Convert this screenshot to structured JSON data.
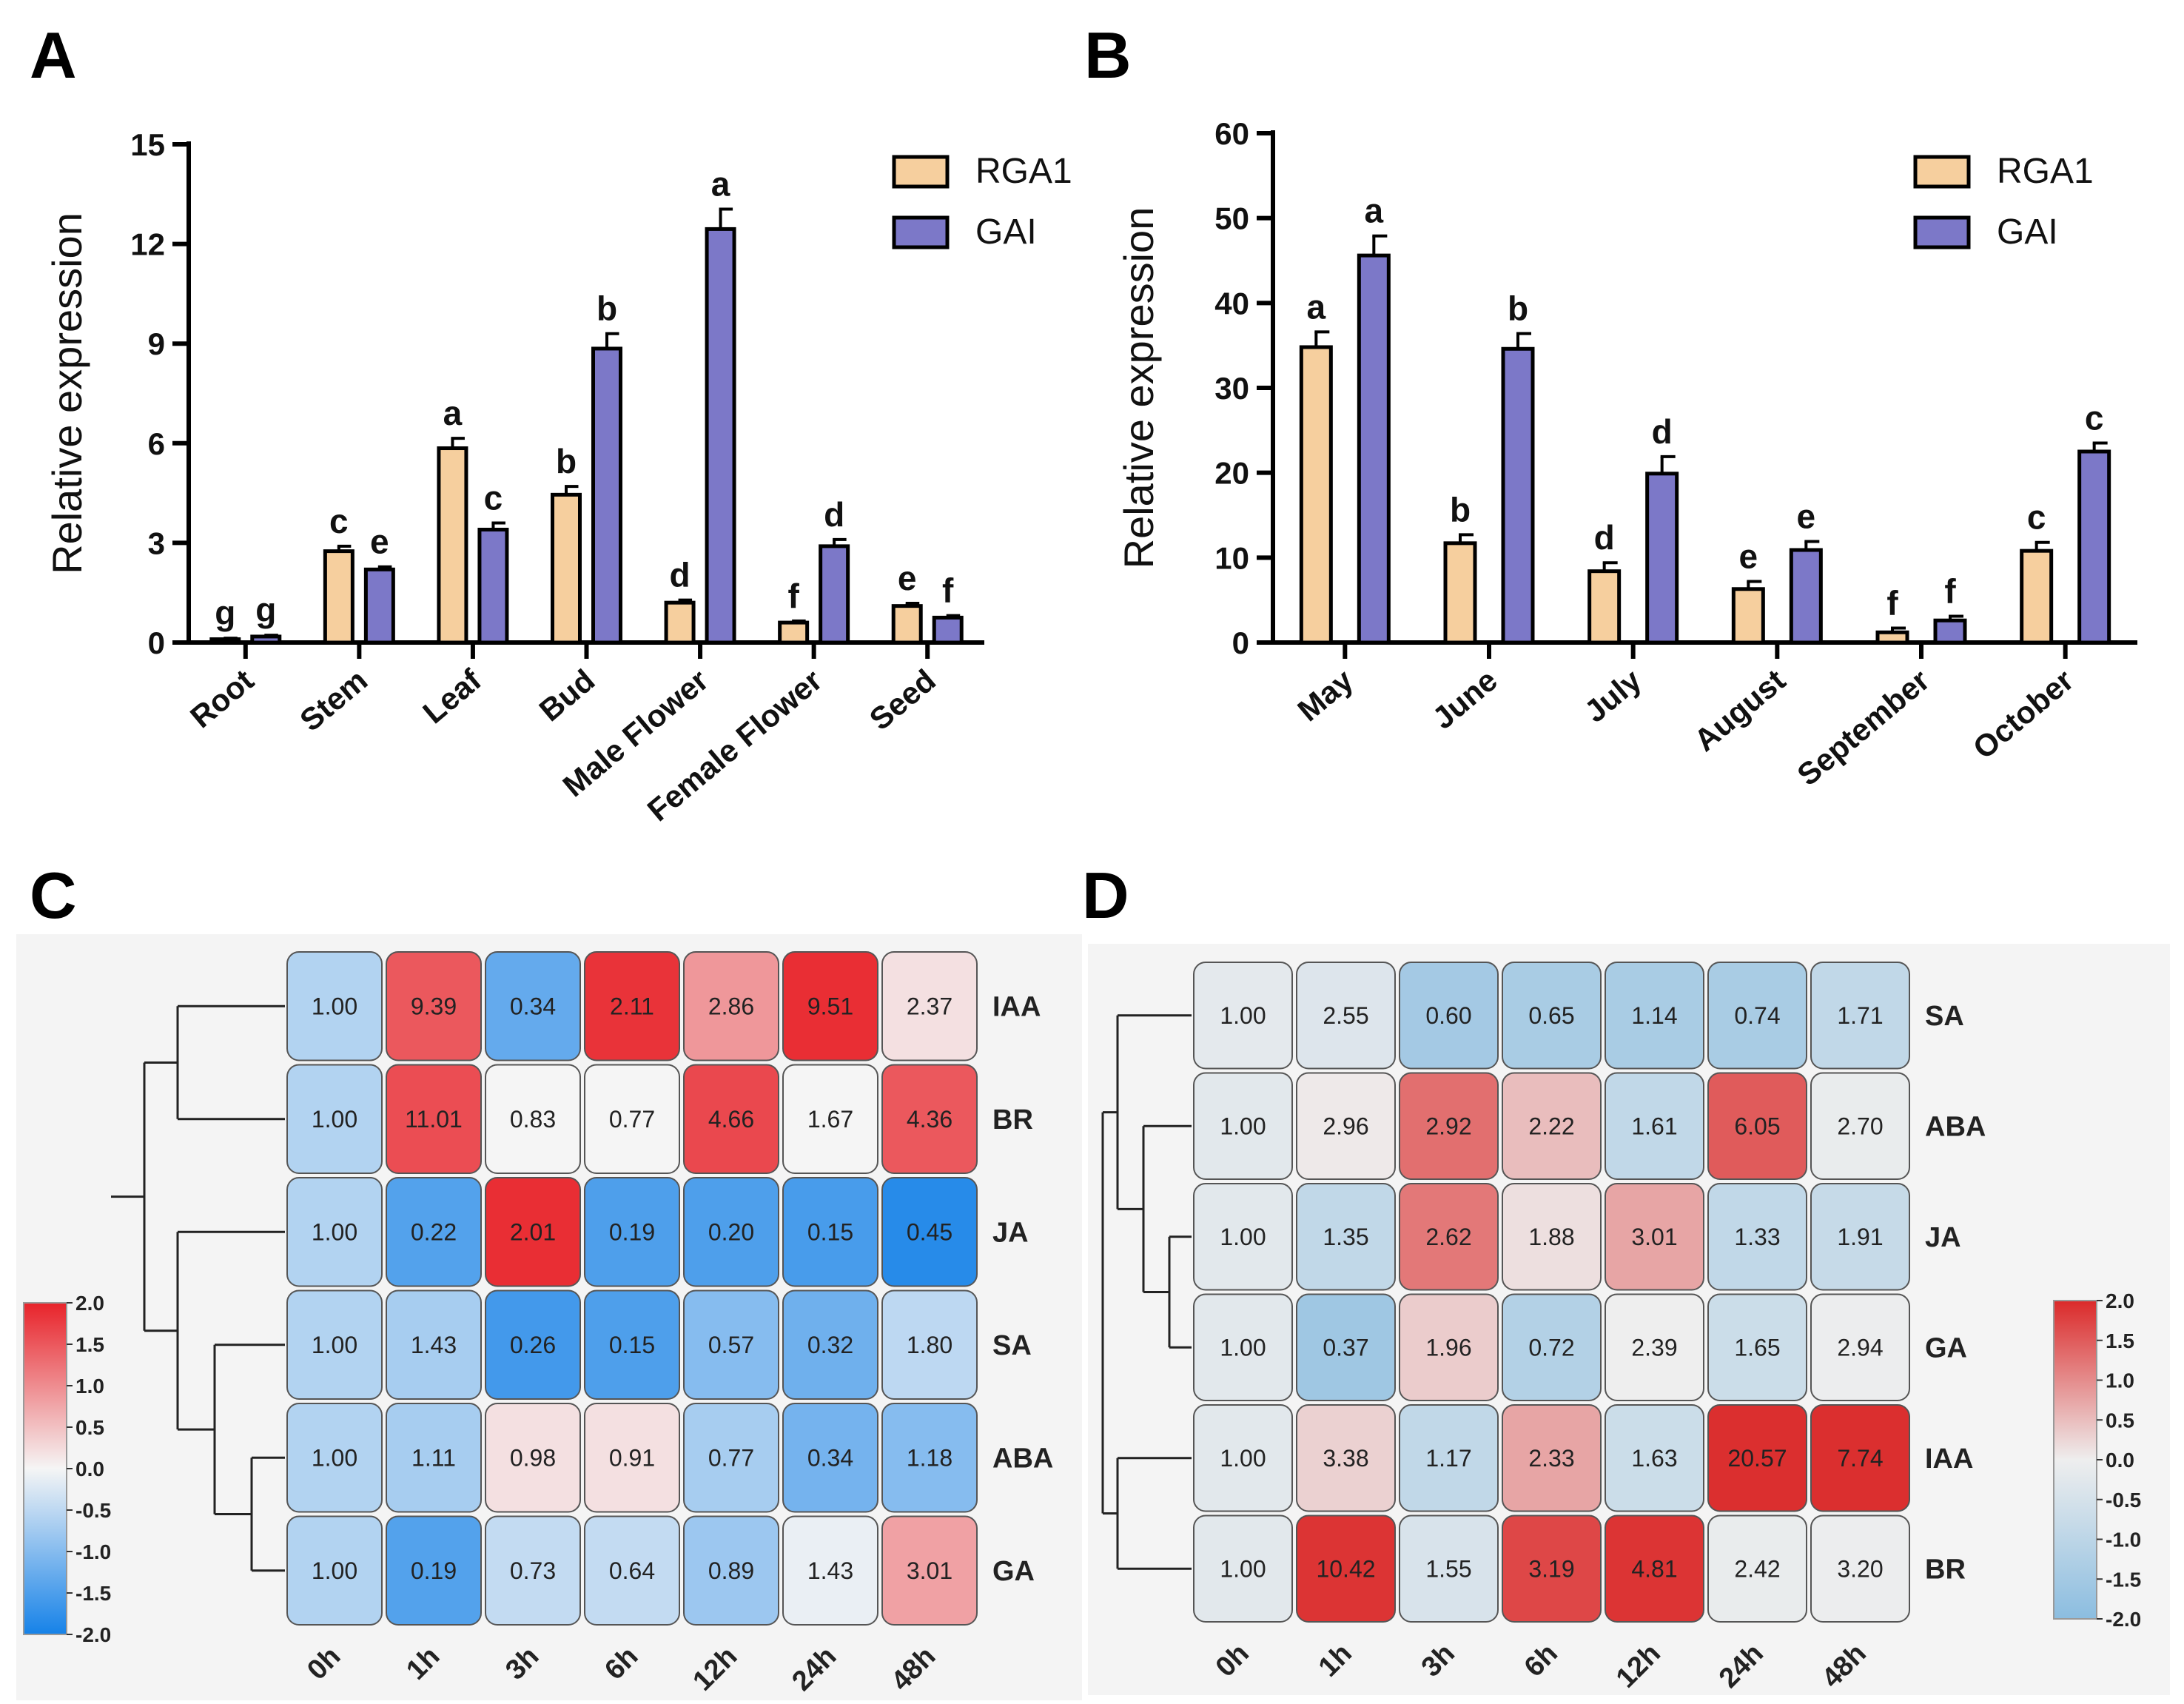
{
  "colors": {
    "rga1": "#f6cf9e",
    "gai": "#7c78c8",
    "c_red": "#e8232a",
    "c_white": "#f5f5f5",
    "c_blue": "#1682e8",
    "d_red": "#db2a2a",
    "d_white": "#eeeeee",
    "d_blue": "#8bbde0"
  },
  "chart_data": [
    {
      "panel": "A",
      "type": "bar",
      "ylabel": "Relative expression",
      "ylim": [
        0,
        15
      ],
      "yticks": [
        0,
        3,
        6,
        9,
        12,
        15
      ],
      "categories": [
        "Root",
        "Stem",
        "Leaf",
        "Bud",
        "Male Flower",
        "Female Flower",
        "Seed"
      ],
      "series": [
        {
          "name": "RGA1",
          "values": [
            0.1,
            2.75,
            5.85,
            4.45,
            1.2,
            0.6,
            1.1
          ],
          "errors": [
            0.03,
            0.15,
            0.3,
            0.25,
            0.08,
            0.05,
            0.08
          ],
          "letters": [
            "g",
            "c",
            "a",
            "b",
            "d",
            "f",
            "e"
          ]
        },
        {
          "name": "GAI",
          "values": [
            0.18,
            2.2,
            3.4,
            8.85,
            12.45,
            2.9,
            0.75
          ],
          "errors": [
            0.04,
            0.08,
            0.2,
            0.45,
            0.6,
            0.2,
            0.06
          ],
          "letters": [
            "g",
            "e",
            "c",
            "b",
            "a",
            "d",
            "f"
          ]
        }
      ],
      "legend": [
        "RGA1",
        "GAI"
      ]
    },
    {
      "panel": "B",
      "type": "bar",
      "ylabel": "Relative expression",
      "ylim": [
        0,
        60
      ],
      "yticks": [
        0,
        10,
        20,
        30,
        40,
        50,
        60
      ],
      "categories": [
        "May",
        "June",
        "July",
        "August",
        "September",
        "October"
      ],
      "series": [
        {
          "name": "RGA1",
          "values": [
            34.8,
            11.7,
            8.4,
            6.3,
            1.2,
            10.8
          ],
          "errors": [
            1.8,
            1.0,
            1.0,
            0.9,
            0.5,
            1.0
          ],
          "letters": [
            "a",
            "b",
            "d",
            "e",
            "f",
            "c"
          ]
        },
        {
          "name": "GAI",
          "values": [
            45.6,
            34.6,
            19.9,
            10.9,
            2.6,
            22.5
          ],
          "errors": [
            2.3,
            1.8,
            2.0,
            1.0,
            0.5,
            1.0
          ],
          "letters": [
            "a",
            "b",
            "d",
            "e",
            "f",
            "c"
          ]
        }
      ],
      "legend": [
        "RGA1",
        "GAI"
      ]
    },
    {
      "panel": "C",
      "type": "heatmap",
      "columns": [
        "0h",
        "1h",
        "3h",
        "6h",
        "12h",
        "24h",
        "48h"
      ],
      "rows": [
        {
          "label": "IAA",
          "values": [
            "1.00",
            "9.39",
            "0.34",
            "2.11",
            "2.86",
            "9.51",
            "2.37"
          ],
          "scale": [
            -0.6,
            1.5,
            -1.3,
            1.85,
            0.9,
            1.9,
            0.2
          ]
        },
        {
          "label": "BR",
          "values": [
            "1.00",
            "11.01",
            "0.83",
            "0.77",
            "4.66",
            "1.67",
            "4.36"
          ],
          "scale": [
            -0.6,
            1.6,
            0.0,
            0.0,
            1.65,
            0.0,
            1.5
          ]
        },
        {
          "label": "JA",
          "values": [
            "1.00",
            "0.22",
            "2.01",
            "0.19",
            "0.20",
            "0.15",
            "0.45"
          ],
          "scale": [
            -0.6,
            -1.45,
            1.9,
            -1.5,
            -1.5,
            -1.55,
            -1.85
          ]
        },
        {
          "label": "SA",
          "values": [
            "1.00",
            "1.43",
            "0.26",
            "0.15",
            "0.57",
            "0.32",
            "1.80"
          ],
          "scale": [
            -0.6,
            -0.7,
            -1.6,
            -1.5,
            -1.0,
            -1.2,
            -0.5
          ]
        },
        {
          "label": "ABA",
          "values": [
            "1.00",
            "1.11",
            "0.98",
            "0.91",
            "0.77",
            "0.34",
            "1.18"
          ],
          "scale": [
            -0.6,
            -0.7,
            0.2,
            0.2,
            -0.7,
            -1.15,
            -1.0
          ]
        },
        {
          "label": "GA",
          "values": [
            "1.00",
            "0.19",
            "0.73",
            "0.64",
            "0.89",
            "1.43",
            "3.01"
          ],
          "scale": [
            -0.6,
            -1.45,
            -0.45,
            -0.45,
            -0.8,
            -0.1,
            0.8
          ]
        }
      ],
      "colorbar": {
        "min": -2.0,
        "max": 2.0,
        "ticks": [
          "2.0",
          "1.5",
          "1.0",
          "0.5",
          "0.0",
          "-0.5",
          "-1.0",
          "-1.5",
          "-2.0"
        ]
      }
    },
    {
      "panel": "D",
      "type": "heatmap",
      "columns": [
        "0h",
        "1h",
        "3h",
        "6h",
        "12h",
        "24h",
        "48h"
      ],
      "rows": [
        {
          "label": "SA",
          "values": [
            "1.00",
            "2.55",
            "0.60",
            "0.65",
            "1.14",
            "0.74",
            "1.71"
          ],
          "scale": [
            -0.2,
            -0.35,
            -1.5,
            -1.4,
            -1.4,
            -1.4,
            -0.9
          ]
        },
        {
          "label": "ABA",
          "values": [
            "1.00",
            "2.96",
            "2.92",
            "2.22",
            "1.61",
            "6.05",
            "2.70"
          ],
          "scale": [
            -0.25,
            0.05,
            1.3,
            0.5,
            -0.9,
            1.5,
            -0.1
          ]
        },
        {
          "label": "JA",
          "values": [
            "1.00",
            "1.35",
            "2.62",
            "1.88",
            "3.01",
            "1.33",
            "1.91"
          ],
          "scale": [
            -0.25,
            -0.9,
            1.2,
            0.15,
            0.75,
            -0.9,
            -0.8
          ]
        },
        {
          "label": "GA",
          "values": [
            "1.00",
            "0.37",
            "1.96",
            "0.72",
            "2.39",
            "1.65",
            "2.94"
          ],
          "scale": [
            -0.25,
            -1.6,
            0.35,
            -1.2,
            0.0,
            -0.7,
            -0.05
          ]
        },
        {
          "label": "IAA",
          "values": [
            "1.00",
            "3.38",
            "1.17",
            "2.33",
            "1.63",
            "20.57",
            "7.74"
          ],
          "scale": [
            -0.25,
            0.3,
            -0.9,
            0.75,
            -0.7,
            1.95,
            1.95
          ]
        },
        {
          "label": "BR",
          "values": [
            "1.00",
            "10.42",
            "1.55",
            "3.19",
            "4.81",
            "2.42",
            "3.20"
          ],
          "scale": [
            -0.25,
            1.9,
            -0.45,
            1.7,
            1.9,
            -0.1,
            -0.05
          ]
        }
      ],
      "colorbar": {
        "min": -2.0,
        "max": 2.0,
        "ticks": [
          "2.0",
          "1.5",
          "1.0",
          "0.5",
          "0.0",
          "-0.5",
          "-1.0",
          "-1.5",
          "-2.0"
        ]
      }
    }
  ]
}
